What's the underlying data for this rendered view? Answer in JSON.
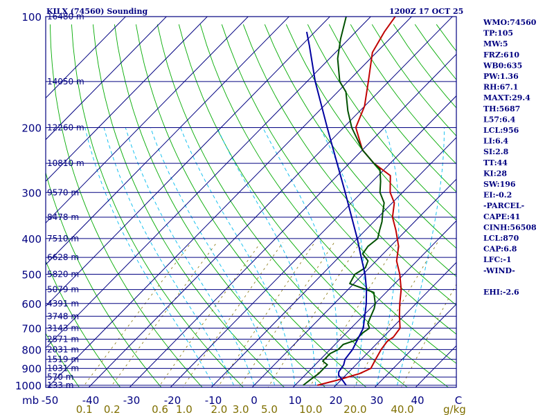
{
  "title_left": "KILX (74560) Sounding",
  "title_right": "1200Z 17 OCT 25",
  "mb_label": "mb",
  "gkg_label": "g/kg",
  "colors": {
    "frame": "#000080",
    "isobar": "#000080",
    "isotherm": "#000080",
    "dry_adiabat": "#00aa00",
    "moist_adiabat": "#00bbee",
    "mixing_ratio": "#7f6f00",
    "temperature": "#c00000",
    "dewpoint": "#005000",
    "parcel": "#0000a0"
  },
  "side_panel": [
    "WMO:74560",
    "TP:105",
    "MW:5",
    "FRZ:610",
    "WB0:635",
    "PW:1.36",
    "RH:67.1",
    "MAXT:29.4",
    "TH:5687",
    "L57:6.4",
    "LCL:956",
    "LI:6.4",
    "SI:2.8",
    "TT:44",
    "KI:28",
    "SW:196",
    "EI:-0.2",
    "-PARCEL-",
    "CAPE:41",
    "CINH:56508",
    "LCL:870",
    "CAP:6.8",
    "LFC:-1",
    "-WIND-",
    "",
    "EHI:-2.6"
  ],
  "chart_data": {
    "type": "line",
    "chart_kind": "skew-T log-P sounding",
    "pressure_range_mb": [
      1000,
      100
    ],
    "pressure_ticks": [
      "100",
      "200",
      "300",
      "400",
      "500",
      "600",
      "700",
      "800",
      "900",
      "1000"
    ],
    "temperature_ticks": [
      "-50",
      "-40",
      "-30",
      "-20",
      "-10",
      "0",
      "10",
      "20",
      "30",
      "40",
      "C"
    ],
    "temperature_range_c": [
      -50,
      50
    ],
    "mixing_ratio_labels": [
      "0.1",
      "0.2",
      "0.6",
      "1.0",
      "2.0",
      "3.0",
      "5.0",
      "10.0",
      "20.0",
      "40.0"
    ],
    "height_labels": [
      {
        "p": 100,
        "text": "16480 m"
      },
      {
        "p": 150,
        "text": "14050 m"
      },
      {
        "p": 200,
        "text": "12260 m"
      },
      {
        "p": 250,
        "text": "10810 m"
      },
      {
        "p": 300,
        "text": "9570 m"
      },
      {
        "p": 350,
        "text": "8478 m"
      },
      {
        "p": 400,
        "text": "7510 m"
      },
      {
        "p": 450,
        "text": "6628 m"
      },
      {
        "p": 500,
        "text": "5820 m"
      },
      {
        "p": 550,
        "text": "5079 m"
      },
      {
        "p": 600,
        "text": "4391 m"
      },
      {
        "p": 650,
        "text": "3748 m"
      },
      {
        "p": 700,
        "text": "3143 m"
      },
      {
        "p": 750,
        "text": "2571 m"
      },
      {
        "p": 800,
        "text": "2031 m"
      },
      {
        "p": 850,
        "text": "1519 m"
      },
      {
        "p": 900,
        "text": "1031 m"
      },
      {
        "p": 950,
        "text": "570 m"
      },
      {
        "p": 1000,
        "text": "133 m"
      }
    ],
    "series": [
      {
        "key": "temperature",
        "points": [
          [
            1000,
            15.5
          ],
          [
            970,
            19
          ],
          [
            930,
            23
          ],
          [
            900,
            24.5
          ],
          [
            850,
            23.5
          ],
          [
            800,
            22.5
          ],
          [
            760,
            22
          ],
          [
            740,
            22.5
          ],
          [
            700,
            22
          ],
          [
            650,
            19
          ],
          [
            600,
            16
          ],
          [
            550,
            13
          ],
          [
            500,
            9
          ],
          [
            460,
            5
          ],
          [
            420,
            2
          ],
          [
            380,
            -2.5
          ],
          [
            350,
            -6.5
          ],
          [
            320,
            -9.5
          ],
          [
            300,
            -13
          ],
          [
            270,
            -17
          ],
          [
            250,
            -24
          ],
          [
            230,
            -30
          ],
          [
            200,
            -37
          ],
          [
            175,
            -40
          ],
          [
            150,
            -45
          ],
          [
            125,
            -51
          ],
          [
            110,
            -53
          ],
          [
            100,
            -54
          ]
        ]
      },
      {
        "key": "dewpoint",
        "points": [
          [
            1000,
            12
          ],
          [
            960,
            12.5
          ],
          [
            930,
            13
          ],
          [
            900,
            13
          ],
          [
            880,
            13
          ],
          [
            860,
            11
          ],
          [
            820,
            11
          ],
          [
            800,
            12
          ],
          [
            775,
            12
          ],
          [
            755,
            14
          ],
          [
            735,
            14
          ],
          [
            720,
            14
          ],
          [
            700,
            14.5
          ],
          [
            680,
            13
          ],
          [
            650,
            12
          ],
          [
            620,
            11
          ],
          [
            600,
            10
          ],
          [
            560,
            7
          ],
          [
            530,
            -1
          ],
          [
            500,
            -2
          ],
          [
            480,
            -1
          ],
          [
            460,
            -2
          ],
          [
            440,
            -5
          ],
          [
            420,
            -5.5
          ],
          [
            400,
            -5
          ],
          [
            380,
            -6.5
          ],
          [
            360,
            -8
          ],
          [
            340,
            -10
          ],
          [
            320,
            -12
          ],
          [
            300,
            -15.5
          ],
          [
            280,
            -18
          ],
          [
            260,
            -21
          ],
          [
            250,
            -24
          ],
          [
            230,
            -30
          ],
          [
            200,
            -38
          ],
          [
            180,
            -43
          ],
          [
            160,
            -48
          ],
          [
            150,
            -52
          ],
          [
            130,
            -58
          ],
          [
            115,
            -62
          ],
          [
            100,
            -66
          ]
        ]
      },
      {
        "key": "parcel",
        "points": [
          [
            1000,
            22.5
          ],
          [
            960,
            19.8
          ],
          [
            940,
            18.3
          ],
          [
            920,
            17.5
          ],
          [
            880,
            17
          ],
          [
            850,
            16
          ],
          [
            800,
            15.5
          ],
          [
            700,
            13
          ],
          [
            650,
            10.5
          ],
          [
            600,
            7.8
          ],
          [
            550,
            4.5
          ],
          [
            500,
            0.5
          ],
          [
            450,
            -4.5
          ],
          [
            400,
            -10
          ],
          [
            350,
            -16.5
          ],
          [
            300,
            -24
          ],
          [
            250,
            -33
          ],
          [
            200,
            -44
          ],
          [
            150,
            -58
          ],
          [
            120,
            -68
          ],
          [
            110,
            -72
          ]
        ]
      }
    ]
  }
}
